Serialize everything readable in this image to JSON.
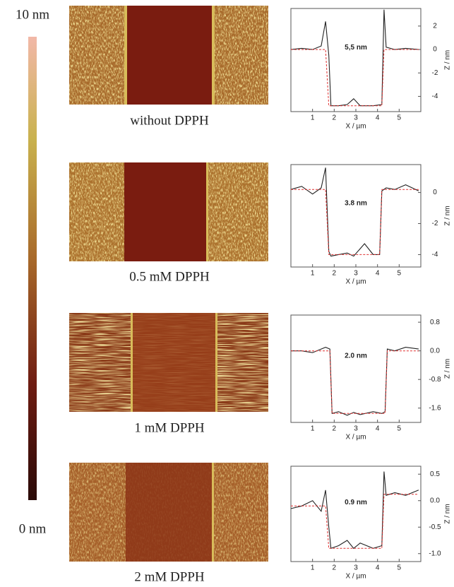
{
  "colorbar": {
    "max_label": "10 nm",
    "min_label": "0 nm"
  },
  "images": [
    {
      "caption": "without DPPH"
    },
    {
      "caption": "0.5 mM DPPH"
    },
    {
      "caption": "1 mM DPPH"
    },
    {
      "caption": "2 mM DPPH"
    }
  ],
  "chart_data": [
    {
      "type": "line",
      "annotation": "5,5 nm",
      "xlabel": "X / µm",
      "ylabel": "Z / nm",
      "x": [
        0,
        0.5,
        1,
        1.4,
        1.6,
        1.75,
        1.85,
        2.2,
        2.6,
        2.9,
        3.2,
        3.8,
        4.2,
        4.3,
        4.4,
        4.8,
        5.3,
        5.9
      ],
      "series": [
        {
          "color": "#222222",
          "style": "solid",
          "values": [
            0,
            0.1,
            0,
            0.3,
            2.4,
            -0.5,
            -4.8,
            -4.8,
            -4.7,
            -4.2,
            -4.8,
            -4.8,
            -4.7,
            3.4,
            0.2,
            0,
            0.1,
            0
          ]
        },
        {
          "color": "#e03030",
          "style": "dashed",
          "values": [
            0,
            0,
            0,
            0,
            0,
            -4.8,
            -4.8,
            -4.8,
            -4.8,
            -4.8,
            -4.8,
            -4.8,
            -4.8,
            0,
            0,
            0,
            0,
            0
          ]
        }
      ],
      "xlim": [
        0,
        6
      ],
      "xticks": [
        1,
        2,
        3,
        4,
        5
      ],
      "ylim": [
        -5.3,
        3.5
      ],
      "yticks": [
        2,
        0,
        -2,
        -4
      ]
    },
    {
      "type": "line",
      "annotation": "3.8 nm",
      "xlabel": "X / µm",
      "ylabel": "Z / nm",
      "x": [
        0,
        0.5,
        1,
        1.4,
        1.6,
        1.75,
        1.85,
        2.2,
        2.6,
        2.9,
        3.4,
        3.8,
        4.1,
        4.2,
        4.4,
        4.8,
        5.3,
        5.9
      ],
      "series": [
        {
          "color": "#222222",
          "style": "solid",
          "values": [
            0.2,
            0.4,
            -0.1,
            0.3,
            1.6,
            -3.8,
            -4.1,
            -4,
            -3.9,
            -4.1,
            -3.3,
            -4,
            -4,
            0.1,
            0.3,
            0.2,
            0.5,
            0.1
          ]
        },
        {
          "color": "#e03030",
          "style": "dashed",
          "values": [
            0.2,
            0.2,
            0.2,
            0.2,
            0.2,
            -4,
            -4,
            -4,
            -4,
            -4,
            -4,
            -4,
            -4,
            0.2,
            0.2,
            0.2,
            0.2,
            0.2
          ]
        }
      ],
      "xlim": [
        0,
        6
      ],
      "xticks": [
        1,
        2,
        3,
        4,
        5
      ],
      "ylim": [
        -4.8,
        1.8
      ],
      "yticks": [
        0,
        -2,
        -4
      ]
    },
    {
      "type": "line",
      "annotation": "2.0 nm",
      "xlabel": "X / µm",
      "ylabel": "Z / nm",
      "x": [
        0,
        0.5,
        1,
        1.4,
        1.6,
        1.8,
        1.9,
        2.2,
        2.6,
        2.9,
        3.2,
        3.8,
        4.2,
        4.35,
        4.45,
        4.8,
        5.3,
        5.9
      ],
      "series": [
        {
          "color": "#222222",
          "style": "solid",
          "values": [
            0,
            0,
            -0.05,
            0.05,
            0.1,
            0.05,
            -1.75,
            -1.7,
            -1.8,
            -1.72,
            -1.78,
            -1.7,
            -1.75,
            -1.7,
            0.05,
            0,
            0.1,
            0.05
          ]
        },
        {
          "color": "#e03030",
          "style": "dashed",
          "values": [
            0,
            0,
            0,
            0,
            0,
            0,
            -1.75,
            -1.75,
            -1.75,
            -1.75,
            -1.75,
            -1.75,
            -1.75,
            -1.75,
            0,
            0,
            0,
            0
          ]
        }
      ],
      "xlim": [
        0,
        6
      ],
      "xticks": [
        1,
        2,
        3,
        4,
        5
      ],
      "ylim": [
        -2.0,
        1.0
      ],
      "yticks": [
        0.8,
        {
          "value": 0,
          "label": "0.0"
        },
        -0.8,
        -1.6
      ]
    },
    {
      "type": "line",
      "annotation": "0.9 nm",
      "xlabel": "X / µm",
      "ylabel": "Z / nm",
      "x": [
        0,
        0.5,
        1,
        1.4,
        1.6,
        1.75,
        1.85,
        2.2,
        2.6,
        2.9,
        3.2,
        3.8,
        4.2,
        4.3,
        4.4,
        4.8,
        5.3,
        5.9
      ],
      "series": [
        {
          "color": "#222222",
          "style": "solid",
          "values": [
            -0.15,
            -0.1,
            0,
            -0.2,
            0.2,
            -0.5,
            -0.9,
            -0.85,
            -0.75,
            -0.9,
            -0.8,
            -0.9,
            -0.85,
            0.55,
            0.1,
            0.15,
            0.1,
            0.2
          ]
        },
        {
          "color": "#e03030",
          "style": "dashed",
          "values": [
            -0.1,
            -0.1,
            -0.1,
            -0.1,
            -0.1,
            -0.9,
            -0.9,
            -0.9,
            -0.9,
            -0.9,
            -0.9,
            -0.9,
            -0.9,
            0.12,
            0.12,
            0.12,
            0.12,
            0.12
          ]
        }
      ],
      "xlim": [
        0,
        6
      ],
      "xticks": [
        1,
        2,
        3,
        4,
        5
      ],
      "ylim": [
        -1.15,
        0.65
      ],
      "yticks": [
        {
          "value": 0.5,
          "label": "0.5"
        },
        {
          "value": 0,
          "label": "0.0"
        },
        {
          "value": -0.5,
          "label": "-0.5"
        },
        {
          "value": -1,
          "label": "-1.0"
        }
      ]
    }
  ]
}
